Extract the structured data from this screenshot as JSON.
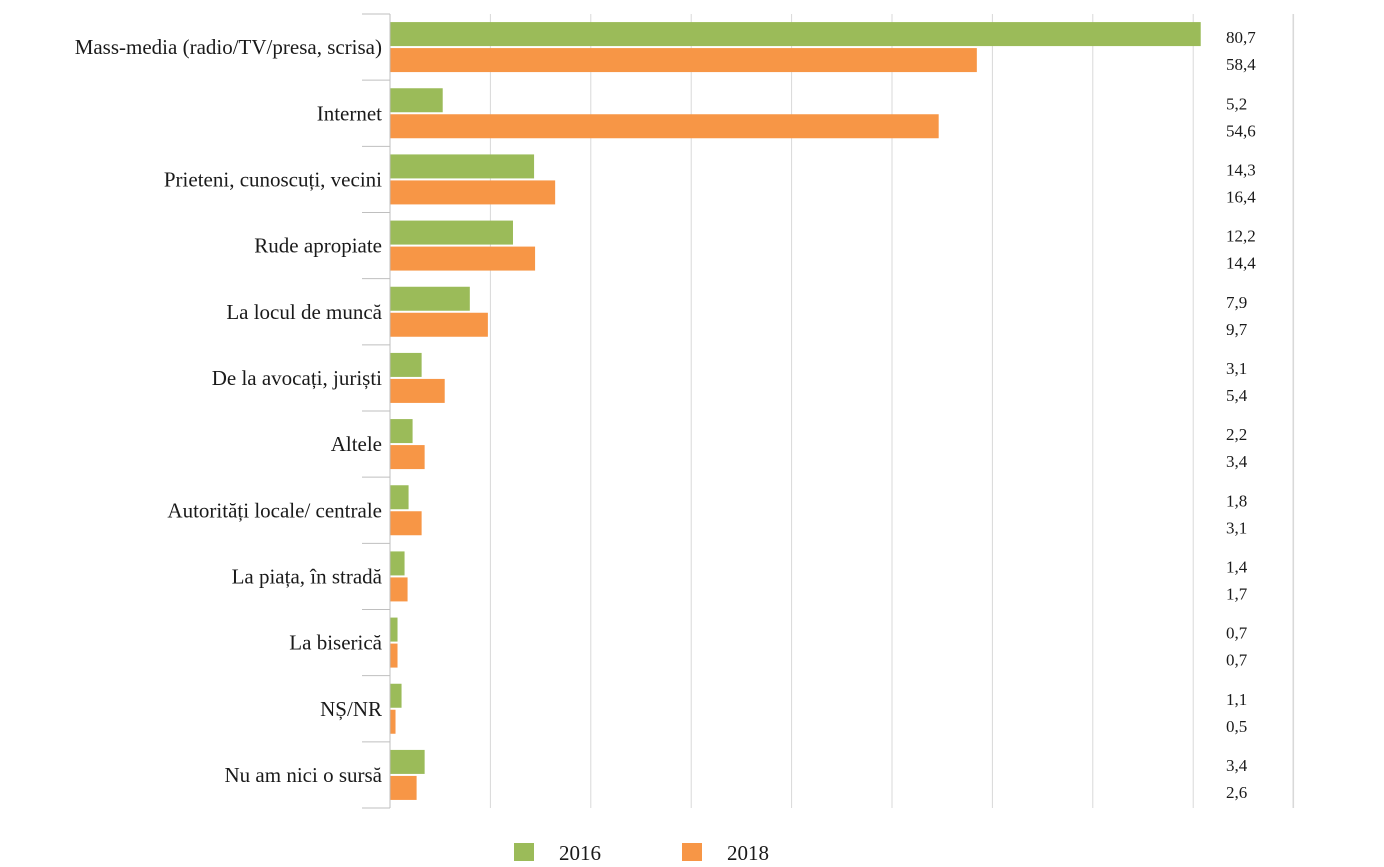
{
  "chart_data": {
    "type": "bar",
    "orientation": "horizontal",
    "categories": [
      "Mass-media (radio/TV/presa, scrisa)",
      "Internet",
      "Prieteni, cunoscuți, vecini",
      "Rude apropiate",
      "La locul de muncă",
      "De la avocați, juriști",
      "Altele",
      "Autorități locale/ centrale",
      "La piața, în stradă",
      "La biserică",
      "NȘ/NR",
      "Nu am nici o sursă"
    ],
    "series": [
      {
        "name": "2016",
        "color": "#9bbb59",
        "values": [
          80.7,
          5.2,
          14.3,
          12.2,
          7.9,
          3.1,
          2.2,
          1.8,
          1.4,
          0.7,
          1.1,
          3.4
        ],
        "labels": [
          "80,7",
          "5,2",
          "14,3",
          "12,2",
          "7,9",
          "3,1",
          "2,2",
          "1,8",
          "1,4",
          "0,7",
          "1,1",
          "3,4"
        ]
      },
      {
        "name": "2018",
        "color": "#f79646",
        "values": [
          58.4,
          54.6,
          16.4,
          14.4,
          9.7,
          5.4,
          3.4,
          3.1,
          1.7,
          0.7,
          0.5,
          2.6
        ],
        "labels": [
          "58,4",
          "54,6",
          "16,4",
          "14,4",
          "9,7",
          "5,4",
          "3,4",
          "3,1",
          "1,7",
          "0,7",
          "0,5",
          "2,6"
        ]
      }
    ],
    "xlim": [
      0,
      90
    ],
    "grid": true,
    "legend": "bottom",
    "title": "",
    "xlabel": "",
    "ylabel": ""
  }
}
